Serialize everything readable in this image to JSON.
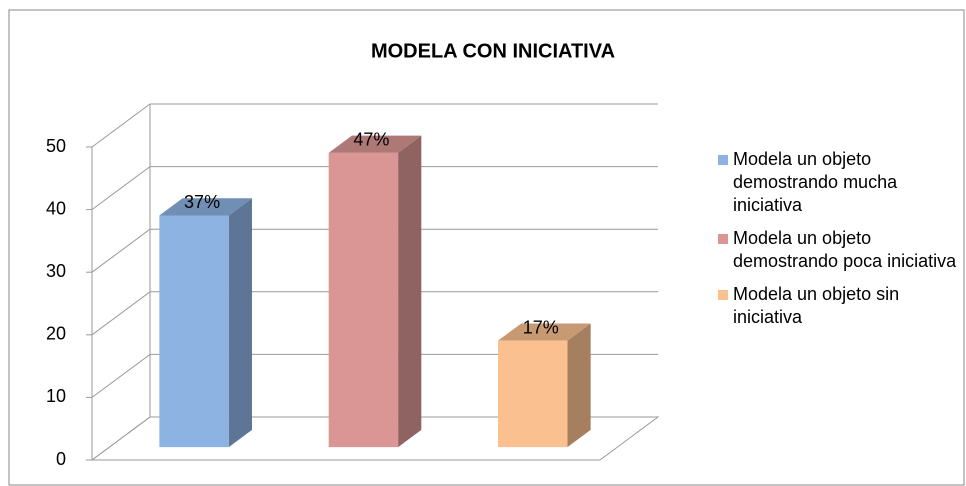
{
  "chart_data": {
    "type": "bar",
    "title": "MODELA CON INICIATIVA",
    "series": [
      {
        "name": "Modela un objeto demostrando mucha iniciativa",
        "color": "#8db3e2",
        "values": [
          37
        ],
        "value_labels": [
          "37%"
        ]
      },
      {
        "name": "Modela un objeto demostrando poca iniciativa",
        "color": "#d99694",
        "values": [
          47
        ],
        "value_labels": [
          "47%"
        ]
      },
      {
        "name": "Modela un objeto sin iniciativa",
        "color": "#fac090",
        "values": [
          17
        ],
        "value_labels": [
          "17%"
        ]
      }
    ],
    "ylim": [
      0,
      50
    ],
    "yticks": [
      0,
      10,
      20,
      30,
      40,
      50
    ],
    "grid": true,
    "legend": "right"
  }
}
